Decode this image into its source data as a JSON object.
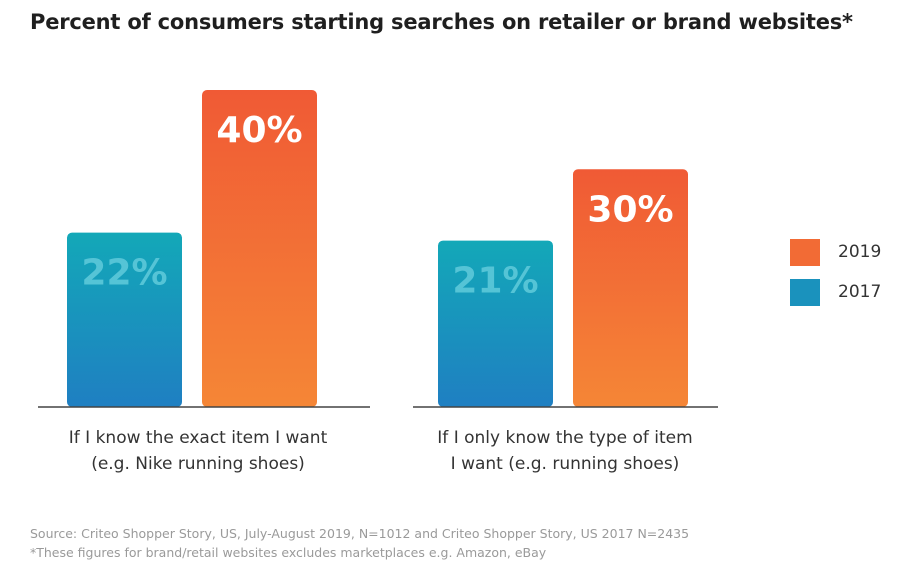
{
  "title": "Percent of consumers starting searches on retailer or brand websites*",
  "chart_data": {
    "type": "bar",
    "categories": [
      [
        "If I know the exact item I want",
        "(e.g. Nike running shoes)"
      ],
      [
        "If I only know the type of item",
        "I want (e.g. running shoes)"
      ]
    ],
    "series": [
      {
        "name": "2017",
        "values": [
          22,
          21
        ],
        "labels": [
          "22%",
          "21%"
        ],
        "color": "#1a92bd"
      },
      {
        "name": "2019",
        "values": [
          40,
          30
        ],
        "labels": [
          "40%",
          "30%"
        ],
        "color": "#f26b35"
      }
    ],
    "legend": [
      {
        "name": "2019",
        "color": "#f26b35"
      },
      {
        "name": "2017",
        "color": "#1a92bd"
      }
    ],
    "legend_position": "right",
    "ylim": [
      0,
      40
    ],
    "grid": false
  },
  "footnotes": {
    "source": "Source: Criteo Shopper Story, US, July-August 2019, N=1012 and Criteo Shopper Story, US 2017 N=2435",
    "note": "*These figures for brand/retail websites excludes marketplaces e.g. Amazon, eBay"
  }
}
